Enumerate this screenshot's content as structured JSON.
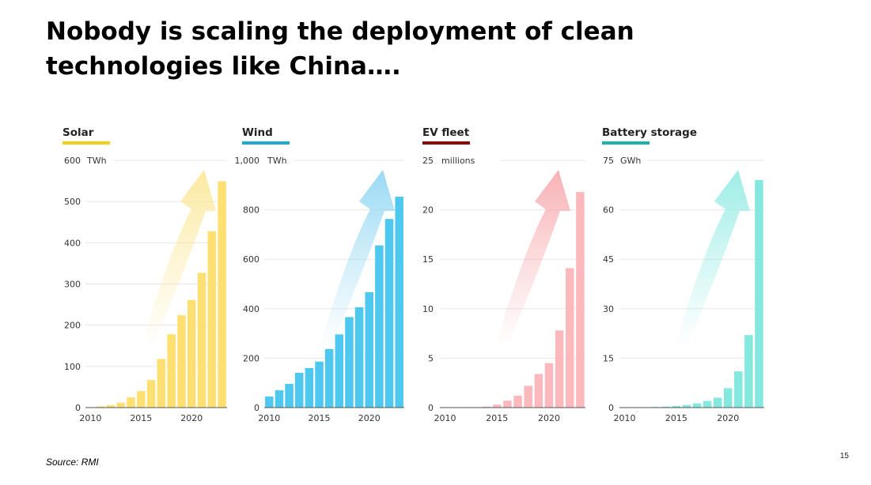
{
  "title": "Nobody is scaling the deployment of clean technologies like China….",
  "source": "Source: RMI",
  "page_number": "15",
  "chart_data": [
    {
      "type": "bar",
      "title": "Solar",
      "unit": "TWh",
      "accent_color": "#f2cf1c",
      "bar_color": "#fde071",
      "arrow_color": "#fbe797",
      "x": [
        2010,
        2011,
        2012,
        2013,
        2014,
        2015,
        2016,
        2017,
        2018,
        2019,
        2020,
        2021,
        2022,
        2023
      ],
      "values": [
        1,
        3,
        6,
        12,
        25,
        40,
        67,
        118,
        178,
        224,
        261,
        327,
        428,
        549
      ],
      "ylim": [
        0,
        600
      ],
      "yticks": [
        0,
        100,
        200,
        300,
        400,
        500,
        600
      ],
      "ytick_labels": [
        "0",
        "100",
        "200",
        "300",
        "400",
        "500",
        "600"
      ],
      "xticks": [
        2010,
        2015,
        2020
      ],
      "grid": true
    },
    {
      "type": "bar",
      "title": "Wind",
      "unit": "TWh",
      "accent_color": "#21a8d6",
      "bar_color": "#4fc8f0",
      "arrow_color": "#8fd6f2",
      "x": [
        2010,
        2011,
        2012,
        2013,
        2014,
        2015,
        2016,
        2017,
        2018,
        2019,
        2020,
        2021,
        2022,
        2023
      ],
      "values": [
        45,
        70,
        96,
        141,
        160,
        186,
        237,
        296,
        366,
        406,
        467,
        656,
        763,
        853
      ],
      "ylim": [
        0,
        1000
      ],
      "yticks": [
        0,
        200,
        400,
        600,
        800,
        1000
      ],
      "ytick_labels": [
        "0",
        "200",
        "400",
        "600",
        "800",
        "1,000"
      ],
      "xticks": [
        2010,
        2015,
        2020
      ],
      "grid": true
    },
    {
      "type": "bar",
      "title": "EV fleet",
      "unit": "millions",
      "accent_color": "#8b0a0a",
      "bar_color": "#fbb9bd",
      "arrow_color": "#f7a9ae",
      "x": [
        2010,
        2011,
        2012,
        2013,
        2014,
        2015,
        2016,
        2017,
        2018,
        2019,
        2020,
        2021,
        2022,
        2023
      ],
      "values": [
        0.01,
        0.02,
        0.03,
        0.05,
        0.1,
        0.3,
        0.7,
        1.2,
        2.2,
        3.4,
        4.5,
        7.8,
        14.1,
        21.8
      ],
      "ylim": [
        0,
        25
      ],
      "yticks": [
        0,
        5,
        10,
        15,
        20,
        25
      ],
      "ytick_labels": [
        "0",
        "5",
        "10",
        "15",
        "20",
        "25"
      ],
      "xticks": [
        2010,
        2015,
        2020
      ],
      "grid": true
    },
    {
      "type": "bar",
      "title": "Battery storage",
      "unit": "GWh",
      "accent_color": "#1cb3a8",
      "bar_color": "#85e8df",
      "arrow_color": "#93ebe3",
      "x": [
        2010,
        2011,
        2012,
        2013,
        2014,
        2015,
        2016,
        2017,
        2018,
        2019,
        2020,
        2021,
        2022,
        2023
      ],
      "values": [
        0.05,
        0.1,
        0.1,
        0.2,
        0.3,
        0.5,
        0.8,
        1.3,
        2.0,
        3.0,
        5.9,
        11.0,
        22.0,
        69.0
      ],
      "ylim": [
        0,
        75
      ],
      "yticks": [
        0,
        15,
        30,
        45,
        60,
        75
      ],
      "ytick_labels": [
        "0",
        "15",
        "30",
        "45",
        "60",
        "75"
      ],
      "xticks": [
        2010,
        2015,
        2020
      ],
      "grid": true
    }
  ]
}
